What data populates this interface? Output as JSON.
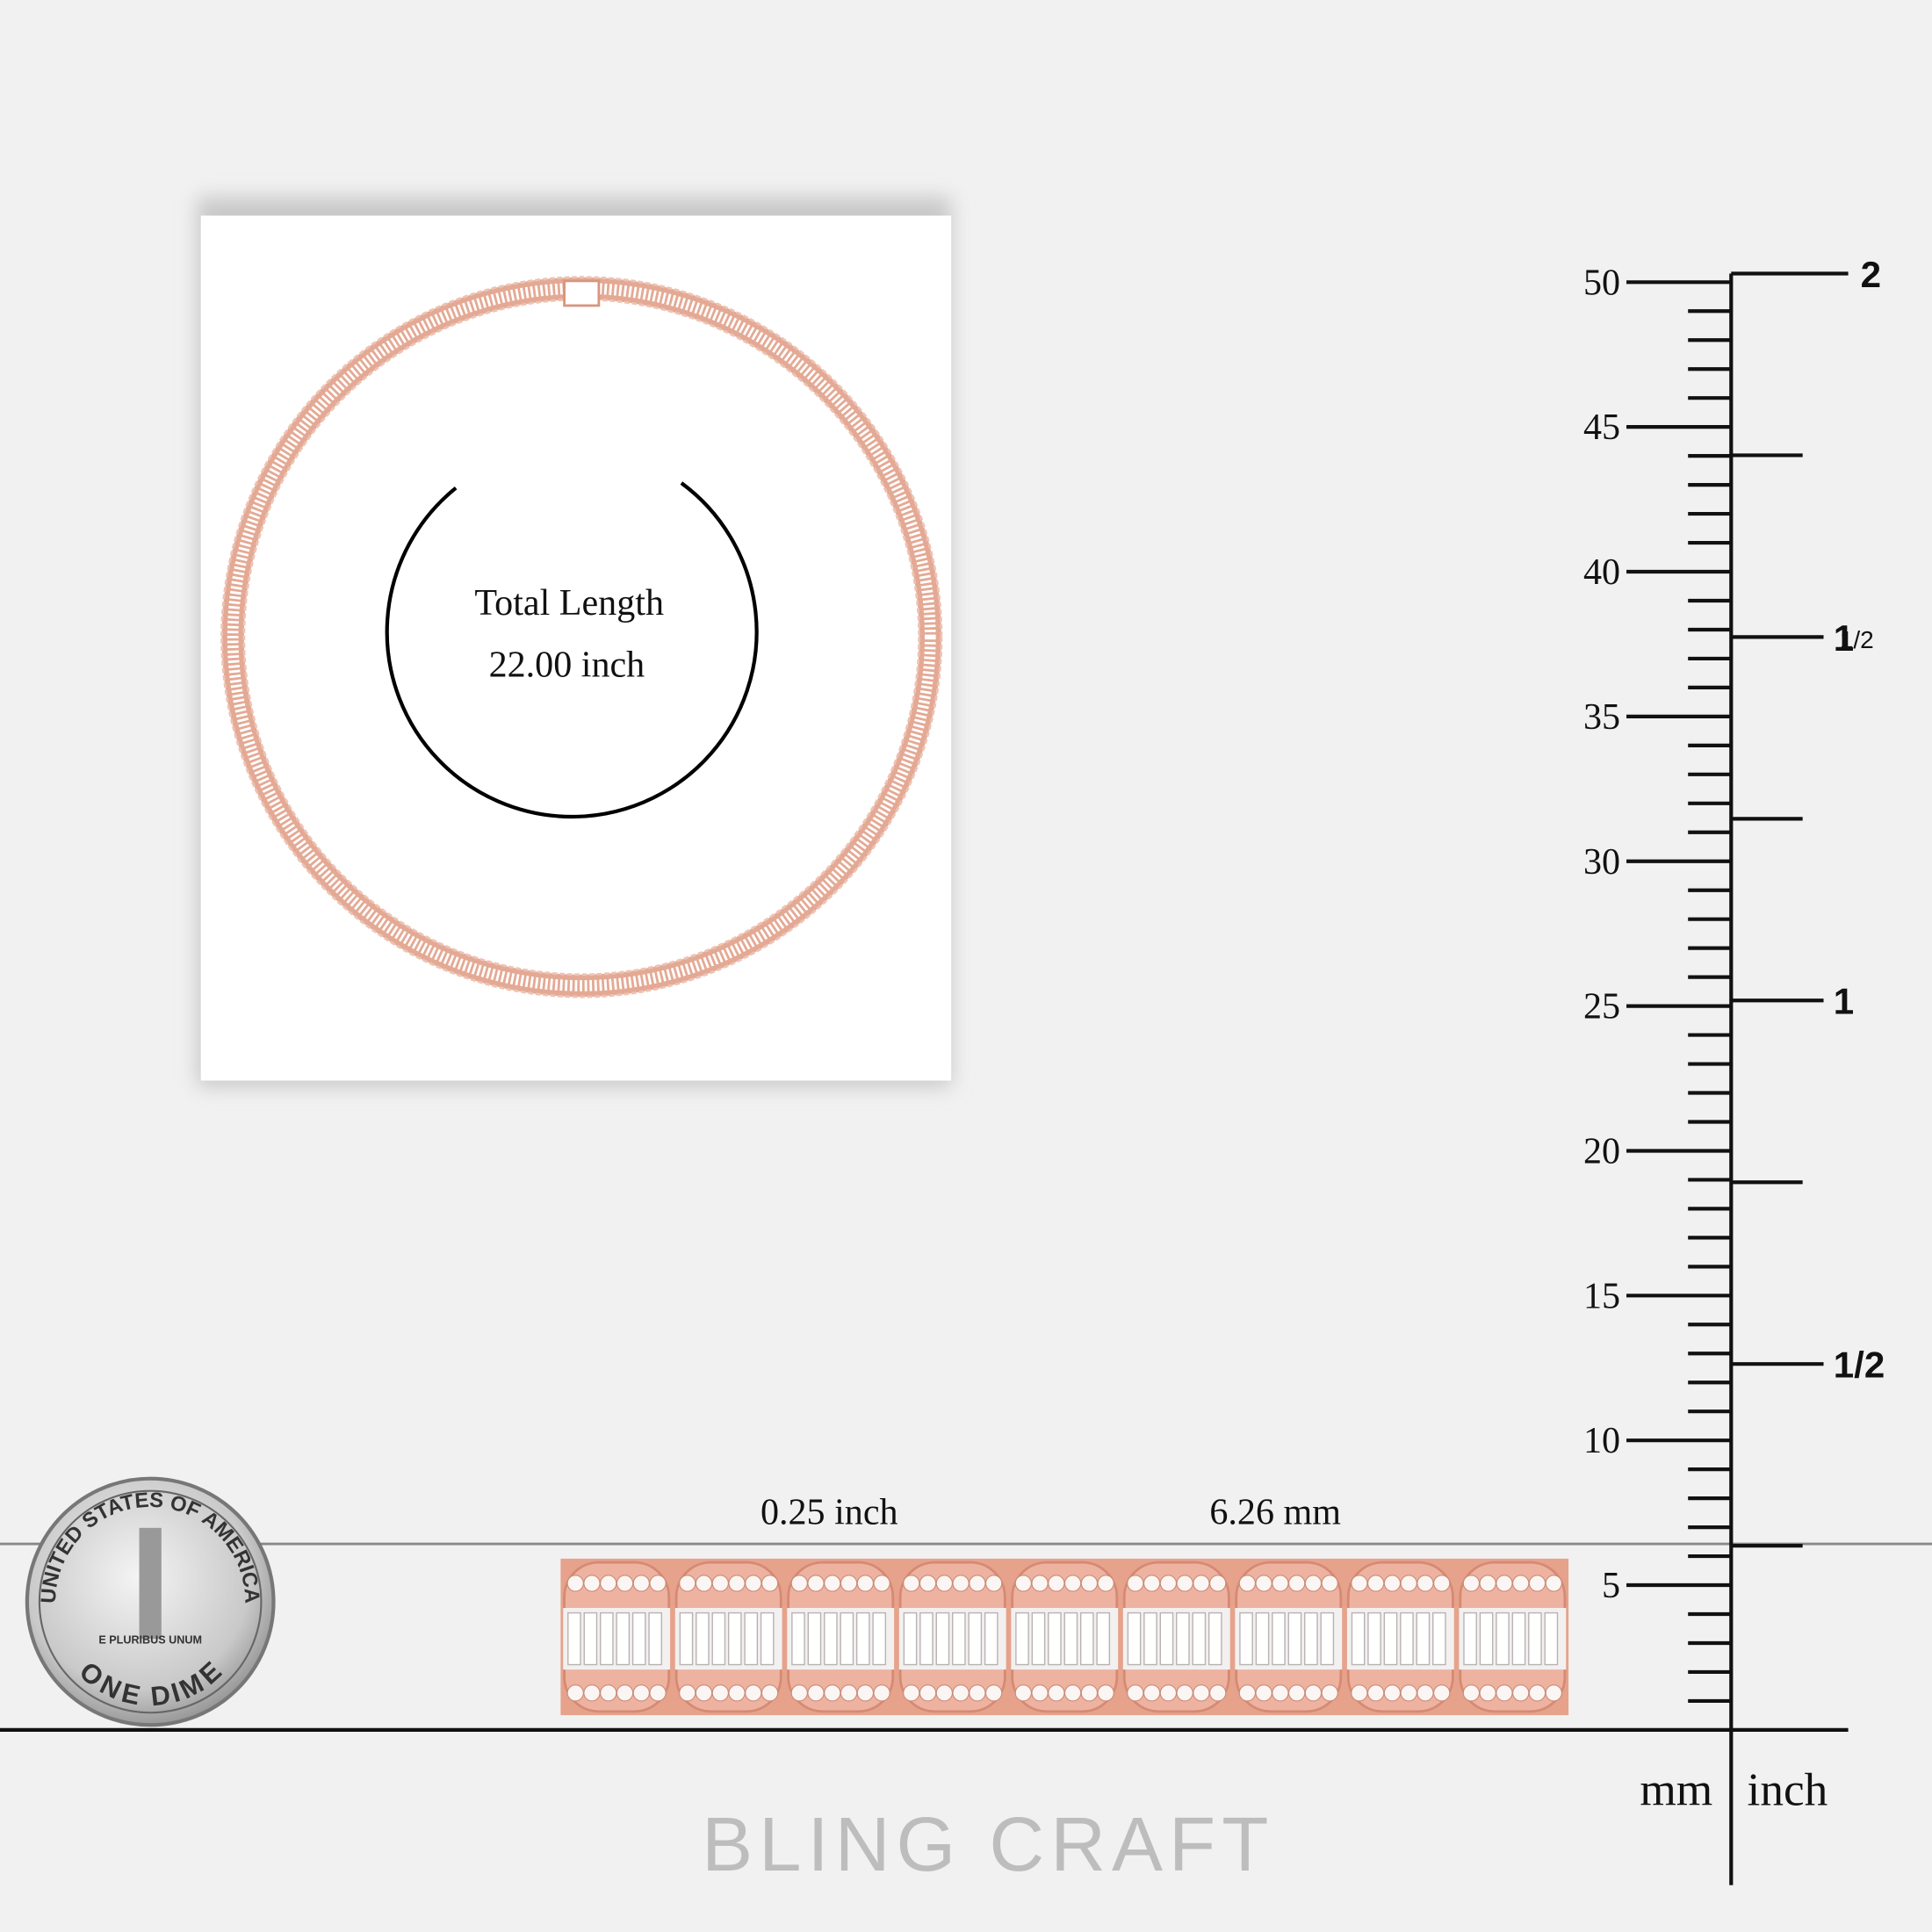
{
  "necklace": {
    "caption_line1": "Total Length",
    "caption_line2": "22.00 inch"
  },
  "bracelet": {
    "width_inch": "0.25 inch",
    "width_mm": "6.26 mm"
  },
  "coin": {
    "top": "UNITED STATES OF AMERICA",
    "motto": "E PLURIBUS UNUM",
    "bottom": "ONE DIME"
  },
  "ruler": {
    "mm_labels": [
      5,
      10,
      15,
      20,
      25,
      30,
      35,
      40,
      45,
      50
    ],
    "inch_labels": [
      {
        "text": "1/2"
      },
      {
        "text": "1"
      },
      {
        "text": "1",
        "fraction": "1/2"
      },
      {
        "text": "2"
      }
    ],
    "unit_left": "mm",
    "unit_right": "inch"
  },
  "brand": "BLING CRAFT"
}
